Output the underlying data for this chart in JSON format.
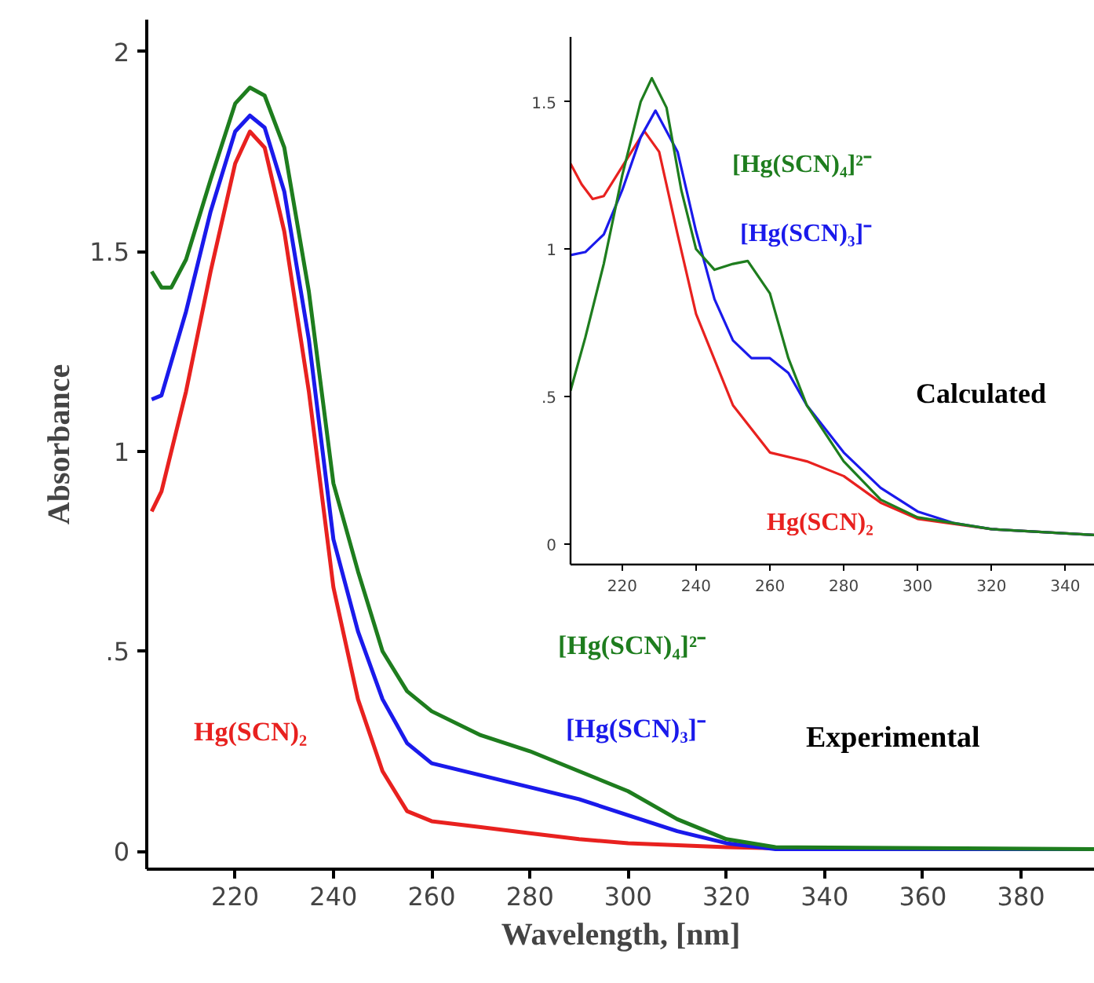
{
  "chart_data": [
    {
      "type": "line",
      "xlabel": "Wavelength, [nm]",
      "ylabel": "Absorbance",
      "annotations": [
        "Experimental"
      ],
      "xlim": [
        202,
        395
      ],
      "ylim": [
        -0.045,
        2.08
      ],
      "xticks": [
        220,
        240,
        260,
        280,
        300,
        320,
        340,
        360,
        380
      ],
      "yticks": [
        0,
        {
          "value": 0.5,
          "label": ".5"
        },
        1,
        1.5,
        2
      ],
      "series": [
        {
          "name": "Hg(SCN)₂",
          "color": "#e8211f",
          "x": [
            203,
            205,
            210,
            215,
            220,
            223,
            226,
            230,
            235,
            240,
            245,
            250,
            255,
            260,
            270,
            280,
            290,
            300,
            320,
            340,
            395
          ],
          "values": [
            0.85,
            0.9,
            1.15,
            1.45,
            1.72,
            1.8,
            1.76,
            1.55,
            1.15,
            0.66,
            0.38,
            0.2,
            0.1,
            0.075,
            0.06,
            0.045,
            0.03,
            0.02,
            0.01,
            0.005,
            0.005
          ]
        },
        {
          "name": "[Hg(SCN)₃]⁻",
          "color": "#1a1aeb",
          "x": [
            203,
            205,
            210,
            215,
            220,
            223,
            226,
            230,
            235,
            240,
            245,
            250,
            255,
            260,
            270,
            280,
            290,
            300,
            310,
            320,
            330,
            395
          ],
          "values": [
            1.13,
            1.14,
            1.35,
            1.6,
            1.8,
            1.84,
            1.81,
            1.65,
            1.28,
            0.78,
            0.55,
            0.38,
            0.27,
            0.22,
            0.19,
            0.16,
            0.13,
            0.09,
            0.05,
            0.02,
            0.005,
            0.005
          ]
        },
        {
          "name": "[Hg(SCN)₄]²⁻",
          "color": "#1e7d1e",
          "x": [
            203,
            205,
            207,
            210,
            215,
            220,
            223,
            226,
            230,
            235,
            240,
            245,
            250,
            255,
            260,
            270,
            280,
            290,
            300,
            310,
            320,
            330,
            395
          ],
          "values": [
            1.45,
            1.41,
            1.41,
            1.48,
            1.68,
            1.87,
            1.91,
            1.89,
            1.76,
            1.4,
            0.92,
            0.7,
            0.5,
            0.4,
            0.35,
            0.29,
            0.25,
            0.2,
            0.15,
            0.08,
            0.03,
            0.01,
            0.005
          ]
        }
      ]
    },
    {
      "type": "line",
      "annotations": [
        "Calculated"
      ],
      "xlim": [
        206,
        348
      ],
      "ylim": [
        -0.07,
        1.72
      ],
      "xticks": [
        220,
        240,
        260,
        280,
        300,
        320,
        340
      ],
      "yticks": [
        0,
        {
          "value": 0.5,
          "label": ".5"
        },
        1,
        1.5
      ],
      "series": [
        {
          "name": "Hg(SCN)₂",
          "color": "#e8211f",
          "x": [
            206,
            209,
            212,
            215,
            220,
            226,
            230,
            235,
            240,
            250,
            260,
            270,
            280,
            290,
            300,
            320,
            348
          ],
          "values": [
            1.29,
            1.22,
            1.17,
            1.18,
            1.28,
            1.4,
            1.33,
            1.05,
            0.78,
            0.47,
            0.31,
            0.28,
            0.23,
            0.14,
            0.085,
            0.05,
            0.03
          ]
        },
        {
          "name": "[Hg(SCN)₃]⁻",
          "color": "#1a1aeb",
          "x": [
            206,
            210,
            215,
            220,
            225,
            229,
            235,
            240,
            245,
            250,
            255,
            260,
            265,
            270,
            280,
            290,
            300,
            310,
            320,
            348
          ],
          "values": [
            0.98,
            0.99,
            1.05,
            1.2,
            1.38,
            1.47,
            1.33,
            1.06,
            0.83,
            0.69,
            0.63,
            0.63,
            0.58,
            0.47,
            0.31,
            0.19,
            0.11,
            0.07,
            0.05,
            0.03
          ]
        },
        {
          "name": "[Hg(SCN)₄]²⁻",
          "color": "#1e7d1e",
          "x": [
            206,
            210,
            215,
            220,
            225,
            228,
            232,
            236,
            240,
            245,
            250,
            254,
            260,
            265,
            270,
            280,
            290,
            300,
            320,
            348
          ],
          "values": [
            0.52,
            0.7,
            0.95,
            1.25,
            1.5,
            1.58,
            1.48,
            1.2,
            1.0,
            0.93,
            0.95,
            0.96,
            0.85,
            0.63,
            0.47,
            0.28,
            0.15,
            0.09,
            0.05,
            0.03
          ]
        }
      ]
    }
  ]
}
